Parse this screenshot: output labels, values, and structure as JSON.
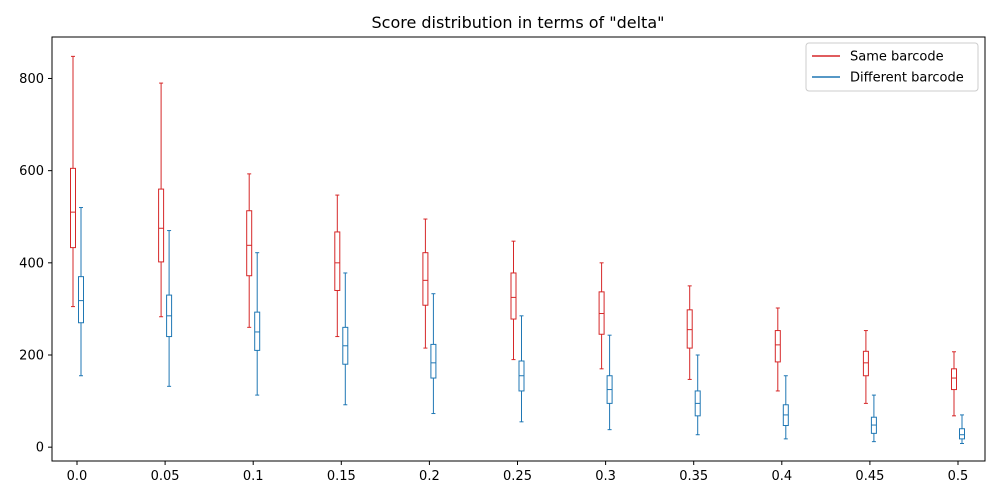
{
  "chart_data": {
    "type": "box",
    "title": "Score distribution in terms of \"delta\"",
    "xlabel": "",
    "ylabel": "",
    "categories": [
      "0.0",
      "0.05",
      "0.1",
      "0.15",
      "0.2",
      "0.25",
      "0.3",
      "0.35",
      "0.4",
      "0.45",
      "0.5"
    ],
    "ylim": [
      -30,
      890
    ],
    "y_ticks": [
      0,
      200,
      400,
      600,
      800
    ],
    "grid": false,
    "legend_position": "top-right",
    "series": [
      {
        "name": "Same barcode",
        "color": "#d62728",
        "boxes": [
          {
            "whislo": 305,
            "q1": 433,
            "med": 510,
            "q3": 605,
            "whishi": 848
          },
          {
            "whislo": 283,
            "q1": 402,
            "med": 475,
            "q3": 560,
            "whishi": 790
          },
          {
            "whislo": 260,
            "q1": 372,
            "med": 438,
            "q3": 513,
            "whishi": 593
          },
          {
            "whislo": 240,
            "q1": 340,
            "med": 400,
            "q3": 467,
            "whishi": 547
          },
          {
            "whislo": 215,
            "q1": 308,
            "med": 362,
            "q3": 422,
            "whishi": 495
          },
          {
            "whislo": 190,
            "q1": 278,
            "med": 325,
            "q3": 378,
            "whishi": 447
          },
          {
            "whislo": 170,
            "q1": 245,
            "med": 290,
            "q3": 337,
            "whishi": 400
          },
          {
            "whislo": 147,
            "q1": 215,
            "med": 255,
            "q3": 298,
            "whishi": 350
          },
          {
            "whislo": 122,
            "q1": 185,
            "med": 222,
            "q3": 253,
            "whishi": 302
          },
          {
            "whislo": 95,
            "q1": 155,
            "med": 183,
            "q3": 208,
            "whishi": 253
          },
          {
            "whislo": 68,
            "q1": 125,
            "med": 150,
            "q3": 170,
            "whishi": 207
          }
        ]
      },
      {
        "name": "Different barcode",
        "color": "#1f77b4",
        "boxes": [
          {
            "whislo": 155,
            "q1": 270,
            "med": 318,
            "q3": 370,
            "whishi": 520
          },
          {
            "whislo": 132,
            "q1": 240,
            "med": 285,
            "q3": 330,
            "whishi": 470
          },
          {
            "whislo": 113,
            "q1": 210,
            "med": 250,
            "q3": 293,
            "whishi": 422
          },
          {
            "whislo": 92,
            "q1": 180,
            "med": 220,
            "q3": 260,
            "whishi": 378
          },
          {
            "whislo": 73,
            "q1": 150,
            "med": 183,
            "q3": 223,
            "whishi": 333
          },
          {
            "whislo": 55,
            "q1": 122,
            "med": 155,
            "q3": 187,
            "whishi": 285
          },
          {
            "whislo": 38,
            "q1": 95,
            "med": 125,
            "q3": 155,
            "whishi": 243
          },
          {
            "whislo": 27,
            "q1": 68,
            "med": 95,
            "q3": 122,
            "whishi": 200
          },
          {
            "whislo": 18,
            "q1": 47,
            "med": 70,
            "q3": 92,
            "whishi": 155
          },
          {
            "whislo": 12,
            "q1": 30,
            "med": 48,
            "q3": 65,
            "whishi": 113
          },
          {
            "whislo": 8,
            "q1": 18,
            "med": 27,
            "q3": 40,
            "whishi": 70
          }
        ]
      }
    ]
  }
}
